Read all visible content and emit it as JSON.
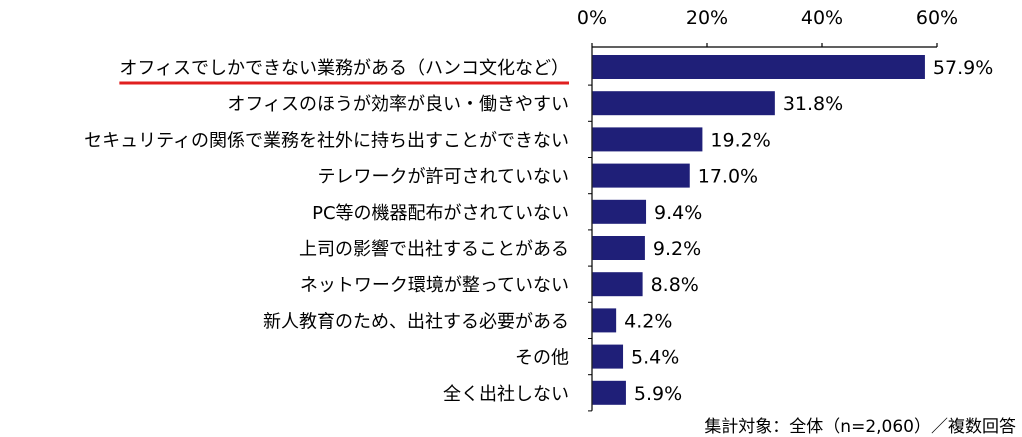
{
  "chart_data": {
    "type": "bar",
    "orientation": "horizontal",
    "categories": [
      "オフィスでしかできない業務がある（ハンコ文化など）",
      "オフィスのほうが効率が良い・働きやすい",
      "セキュリティの関係で業務を社外に持ち出すことができない",
      "テレワークが許可されていない",
      "PC等の機器配布がされていない",
      "上司の影響で出社することがある",
      "ネットワーク環境が整っていない",
      "新人教育のため、出社する必要がある",
      "その他",
      "全く出社しない"
    ],
    "values": [
      57.9,
      31.8,
      19.2,
      17.0,
      9.4,
      9.2,
      8.8,
      4.2,
      5.4,
      5.9
    ],
    "value_labels": [
      "57.9%",
      "31.8%",
      "19.2%",
      "17.0%",
      "9.4%",
      "9.2%",
      "8.8%",
      "4.2%",
      "5.4%",
      "5.9%"
    ],
    "xlim": [
      0,
      60
    ],
    "x_ticks": [
      0,
      20,
      40,
      60
    ],
    "x_tick_labels": [
      "0%",
      "20%",
      "40%",
      "60%"
    ],
    "axis_position": "top",
    "grid": false,
    "bar_color": "#1f1f78",
    "highlight": {
      "category_index": 0,
      "underline_color": "#e01f1f"
    },
    "footnote": "集計対象：全体（n=2,060）／複数回答"
  }
}
